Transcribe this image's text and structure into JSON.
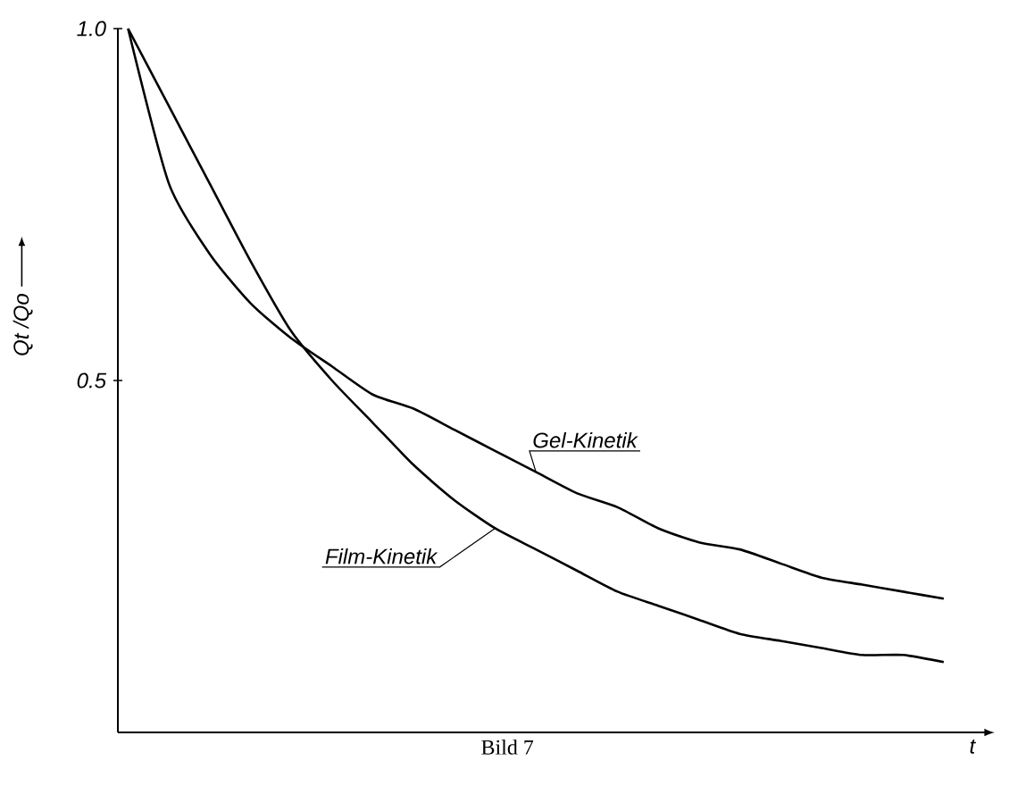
{
  "chart_data": {
    "type": "line",
    "xlabel": "t",
    "ylabel": "Qt /Qo",
    "annotations": [
      "Bild 7"
    ],
    "categories": [
      null,
      null,
      null,
      null,
      null,
      null,
      null,
      null,
      null,
      null,
      null,
      null,
      null,
      null,
      null,
      null,
      null,
      null,
      null,
      null,
      null
    ],
    "series": [
      {
        "name": "Film-Kinetik",
        "color": "#000000",
        "values": [
          1.0,
          0.89,
          0.78,
          0.67,
          0.57,
          0.5,
          0.44,
          0.38,
          0.33,
          0.29,
          0.26,
          0.23,
          0.2,
          0.18,
          0.16,
          0.14,
          0.13,
          0.12,
          0.11,
          0.11,
          0.1
        ]
      },
      {
        "name": "Gel-Kinetik",
        "color": "#000000",
        "values": [
          1.0,
          0.78,
          0.68,
          0.61,
          0.56,
          0.52,
          0.48,
          0.46,
          0.43,
          0.4,
          0.37,
          0.34,
          0.32,
          0.29,
          0.27,
          0.26,
          0.24,
          0.22,
          0.21,
          0.2,
          0.19
        ]
      }
    ],
    "ylim": [
      0,
      1.0
    ],
    "yticks": [
      {
        "value": 1.0,
        "label": "1.0"
      },
      0.5
    ],
    "tick_labels": "y",
    "marker": "none",
    "line_style": "solid"
  }
}
